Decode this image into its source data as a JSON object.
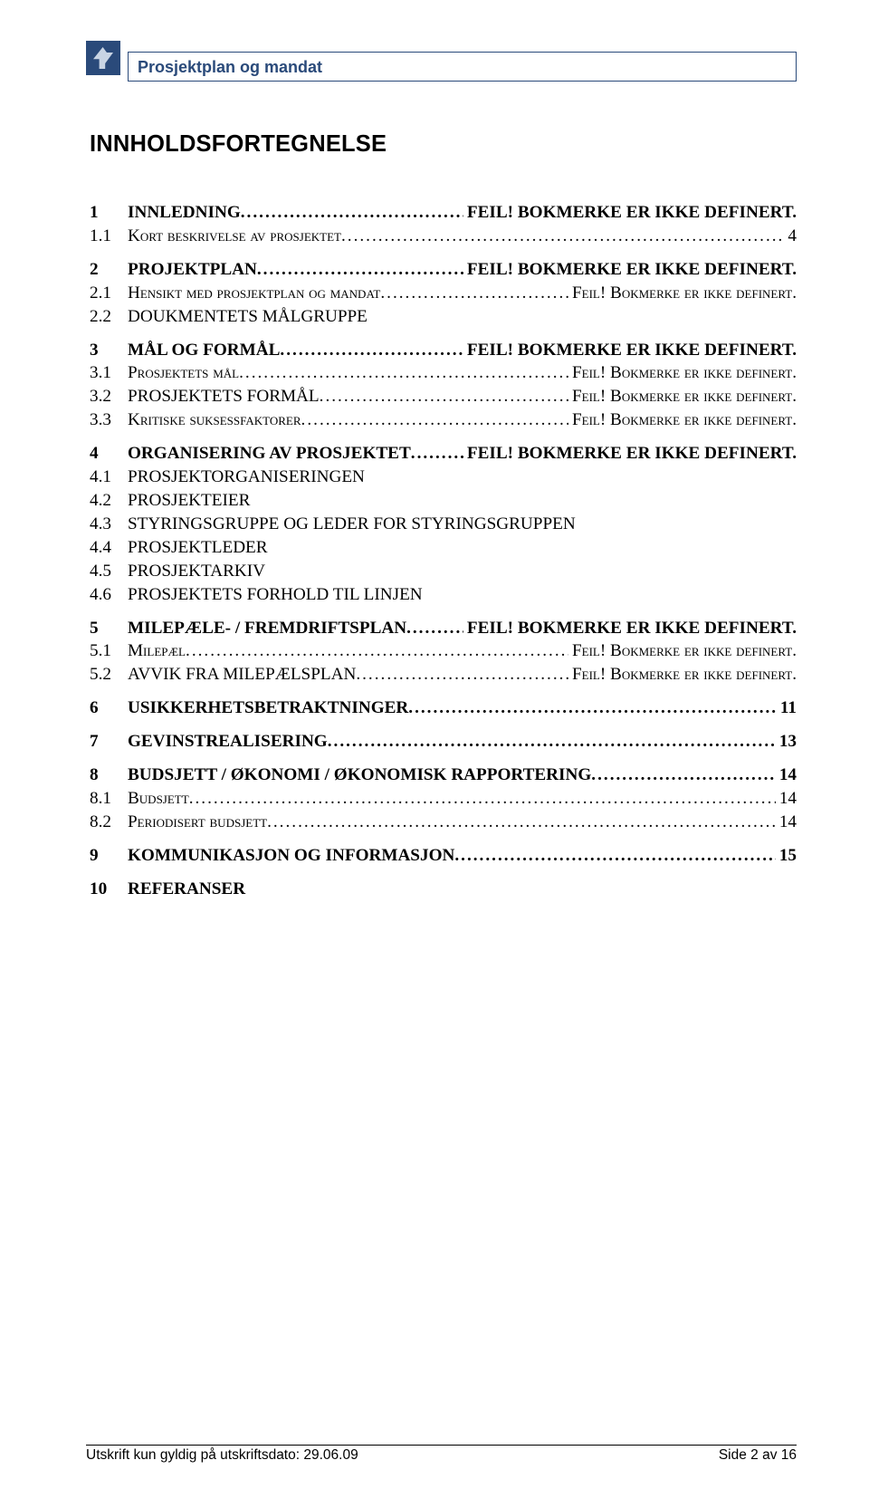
{
  "header": {
    "title": "Prosjektplan og mandat"
  },
  "heading": "INNHOLDSFORTEGNELSE",
  "errorText": "FEIL! BOKMERKE ER IKKE DEFINERT.",
  "errorTextSC": "Feil! Bokmerke er ikke definert.",
  "toc": {
    "s1": {
      "num": "1",
      "label": "INNLEDNING"
    },
    "s11": {
      "num": "1.1",
      "label": "Kort beskrivelse av prosjektet",
      "page": "4"
    },
    "s2": {
      "num": "2",
      "label": "PROJEKTPLAN"
    },
    "s21": {
      "num": "2.1",
      "label": "Hensikt med prosjektplan og mandat"
    },
    "s22": {
      "num": "2.2",
      "label": "DOUKMENTETS MÅLGRUPPE"
    },
    "s3": {
      "num": "3",
      "label": "MÅL OG FORMÅL"
    },
    "s31": {
      "num": "3.1",
      "label": "Prosjektets mål"
    },
    "s32": {
      "num": "3.2",
      "label": "PROSJEKTETS FORMÅL"
    },
    "s33": {
      "num": "3.3",
      "label": "Kritiske suksessfaktorer"
    },
    "s4": {
      "num": "4",
      "label": "ORGANISERING AV PROSJEKTET"
    },
    "s41": {
      "num": "4.1",
      "label": "PROSJEKTORGANISERINGEN"
    },
    "s42": {
      "num": "4.2",
      "label": "PROSJEKTEIER"
    },
    "s43": {
      "num": "4.3",
      "label": "STYRINGSGRUPPE OG LEDER FOR STYRINGSGRUPPEN"
    },
    "s44": {
      "num": "4.4",
      "label": "PROSJEKTLEDER"
    },
    "s45": {
      "num": "4.5",
      "label": "PROSJEKTARKIV"
    },
    "s46": {
      "num": "4.6",
      "label": "PROSJEKTETS FORHOLD TIL LINJEN"
    },
    "s5": {
      "num": "5",
      "label": "MILEPÆLE- / FREMDRIFTSPLAN"
    },
    "s51": {
      "num": "5.1",
      "label": "Milepæl"
    },
    "s52": {
      "num": "5.2",
      "label": "AVVIK FRA MILEPÆLSPLAN"
    },
    "s6": {
      "num": "6",
      "label": "USIKKERHETSBETRAKTNINGER",
      "page": "11"
    },
    "s7": {
      "num": "7",
      "label": "GEVINSTREALISERING",
      "page": "13"
    },
    "s8": {
      "num": "8",
      "label": "BUDSJETT / ØKONOMI / ØKONOMISK RAPPORTERING",
      "page": "14"
    },
    "s81": {
      "num": "8.1",
      "label": "Budsjett",
      "page": "14"
    },
    "s82": {
      "num": "8.2",
      "label": "Periodisert budsjett",
      "page": "14"
    },
    "s9": {
      "num": "9",
      "label": "KOMMUNIKASJON OG INFORMASJON",
      "page": "15"
    },
    "s10": {
      "num": "10",
      "label": "REFERANSER"
    }
  },
  "footer": {
    "left": "Utskrift kun gyldig på utskriftsdato:  29.06.09",
    "right": "Side 2 av 16"
  }
}
